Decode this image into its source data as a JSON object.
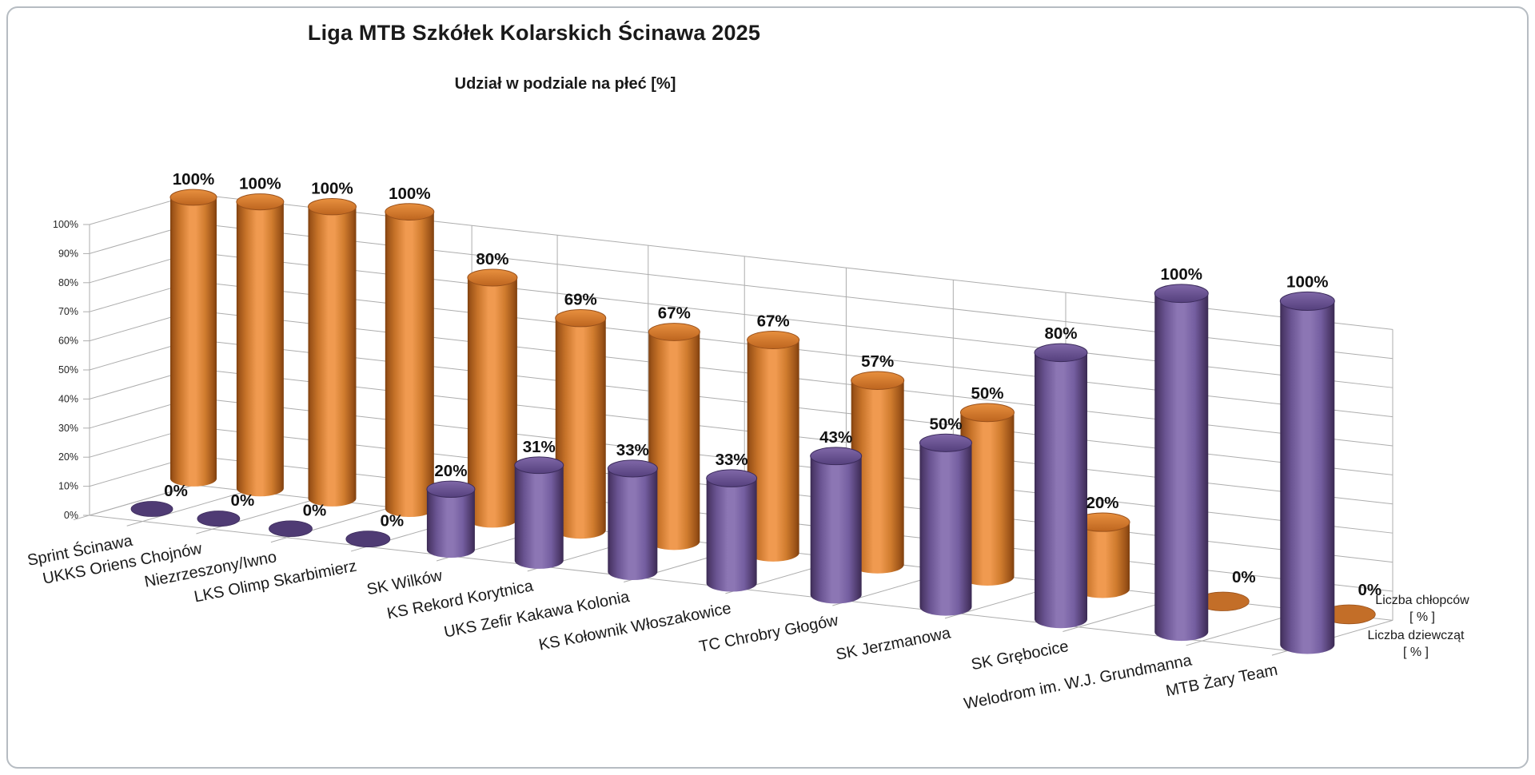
{
  "chart_data": {
    "type": "bar",
    "variant": "3d-cylinder",
    "title": "Liga MTB Szkółek Kolarskich Ścinawa 2025",
    "subtitle": "Udział w podziale na płeć [%]",
    "categories": [
      "Sprint Ścinawa",
      "UKKS Oriens Chojnów",
      "Niezrzeszony/Iwno",
      "LKS Olimp Skarbimierz",
      "SK Wilków",
      "KS Rekord Korytnica",
      "UKS Zefir Kakawa Kolonia",
      "KS Kołownik Włoszakowice",
      "TC Chrobry Głogów",
      "SK Jerzmanowa",
      "SK Grębocice",
      "Welodrom im. W.J. Grundmanna",
      "MTB Żary Team"
    ],
    "series": [
      {
        "name": "Liczba chłopców [ % ]",
        "color": "#E08434",
        "values": [
          100,
          100,
          100,
          100,
          80,
          69,
          67,
          67,
          57,
          50,
          20,
          0,
          0
        ]
      },
      {
        "name": "Liczba dziewcząt [ % ]",
        "color": "#7A61A5",
        "values": [
          0,
          0,
          0,
          0,
          20,
          31,
          33,
          33,
          43,
          50,
          80,
          100,
          100
        ]
      }
    ],
    "value_suffix": "%",
    "data_labels": true,
    "y_ticks": [
      "0%",
      "10%",
      "20%",
      "30%",
      "40%",
      "50%",
      "60%",
      "70%",
      "80%",
      "90%",
      "100%"
    ],
    "ylim": [
      0,
      100
    ],
    "grid": true,
    "legend_position": "right",
    "legend_labels": [
      [
        "Liczba chłopców",
        "[ % ]"
      ],
      [
        "Liczba dziewcząt",
        "[ % ]"
      ]
    ]
  },
  "colors": {
    "boys_body_light": "#F09A50",
    "boys_body_dark": "#7E3F0E",
    "boys_top": "#D17A30",
    "girls_body_light": "#8C76B4",
    "girls_body_dark": "#3A2A52",
    "girls_top": "#6B5694",
    "gridline": "#ADADAD",
    "label_text": "#111111"
  }
}
